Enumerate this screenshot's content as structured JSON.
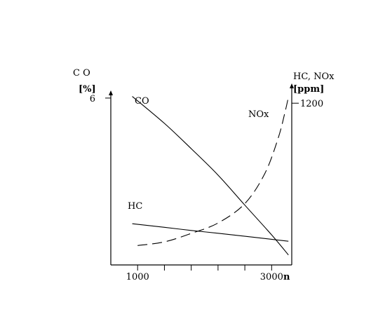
{
  "chart_data": {
    "type": "line",
    "x_axis": {
      "label": "n",
      "tick_labels": [
        "1000",
        "3000"
      ],
      "ticks": [
        1000,
        1400,
        1800,
        2200,
        2600,
        3000
      ],
      "range": [
        600,
        3300
      ]
    },
    "y_left": {
      "label_line1": "C O",
      "label_line2": "[%]",
      "tick_labels": [
        "6"
      ],
      "ticks": [
        6
      ],
      "range": [
        0,
        6.3
      ]
    },
    "y_right": {
      "label_line1": "HC, NOx",
      "label_line2": "[ppm]",
      "tick_labels": [
        "1200"
      ],
      "ticks": [
        1200
      ],
      "range": [
        0,
        1300
      ]
    },
    "series": [
      {
        "name": "CO",
        "axis": "left",
        "style": "solid",
        "points": [
          [
            920,
            6.06
          ],
          [
            1400,
            5.09
          ],
          [
            1800,
            4.18
          ],
          [
            2200,
            3.23
          ],
          [
            2600,
            2.15
          ],
          [
            3000,
            1.08
          ],
          [
            3250,
            0.36
          ]
        ]
      },
      {
        "name": "HC",
        "axis": "right",
        "style": "solid",
        "points": [
          [
            920,
            306
          ],
          [
            1400,
            279
          ],
          [
            1800,
            256
          ],
          [
            2200,
            235
          ],
          [
            2600,
            213
          ],
          [
            3000,
            190
          ],
          [
            3250,
            176
          ]
        ]
      },
      {
        "name": "NOx",
        "axis": "right",
        "style": "dashed",
        "points": [
          [
            1000,
            144
          ],
          [
            1400,
            171
          ],
          [
            1800,
            234
          ],
          [
            2200,
            311
          ],
          [
            2600,
            455
          ],
          [
            2900,
            680
          ],
          [
            3100,
            945
          ],
          [
            3200,
            1135
          ],
          [
            3250,
            1245
          ]
        ]
      }
    ]
  }
}
